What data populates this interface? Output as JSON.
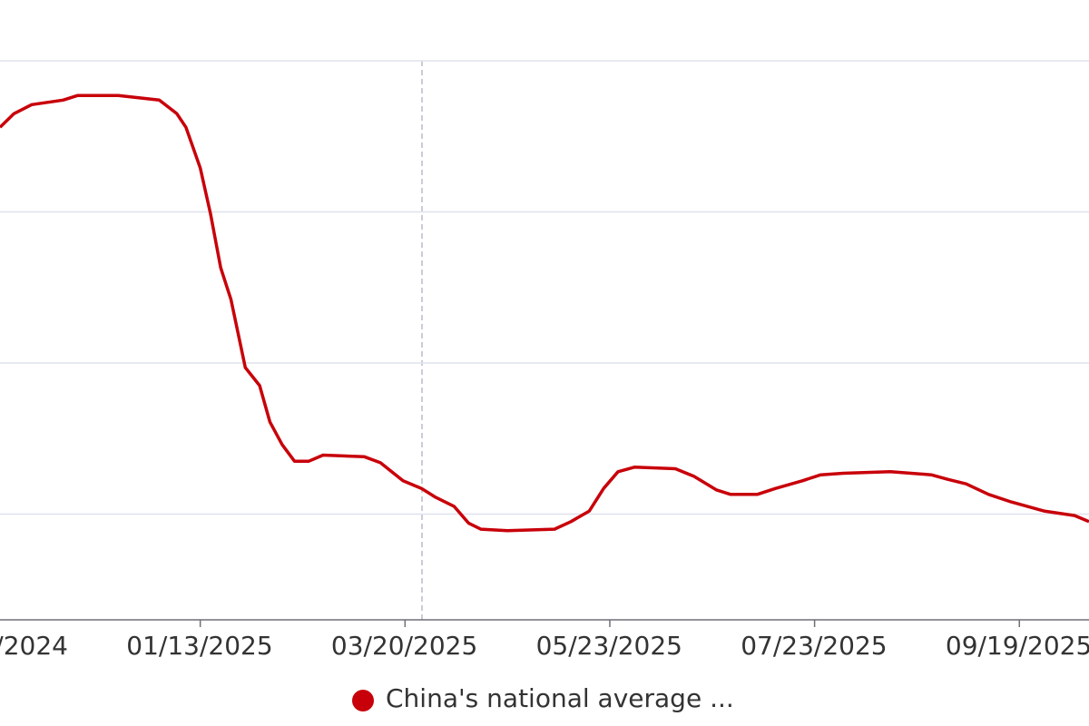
{
  "chart_data": {
    "type": "line",
    "x": [
      0.022,
      0.09,
      0.177,
      0.33,
      0.4,
      0.6,
      0.8,
      0.886,
      0.93,
      1.0,
      1.05,
      1.1,
      1.15,
      1.22,
      1.29,
      1.34,
      1.4,
      1.46,
      1.53,
      1.6,
      1.8,
      1.88,
      1.99,
      2.08,
      2.15,
      2.24,
      2.31,
      2.37,
      2.5,
      2.73,
      2.81,
      2.9,
      2.97,
      3.04,
      3.12,
      3.32,
      3.41,
      3.52,
      3.59,
      3.72,
      3.81,
      3.94,
      4.03,
      4.14,
      4.37,
      4.57,
      4.65,
      4.74,
      4.85,
      4.96,
      5.12,
      5.27,
      5.34
    ],
    "series": [
      {
        "name": "China's national average ...",
        "color": "#c8000a",
        "values": [
          3.56,
          3.65,
          3.71,
          3.74,
          3.77,
          3.77,
          3.74,
          3.65,
          3.56,
          3.29,
          2.99,
          2.63,
          2.42,
          1.97,
          1.85,
          1.61,
          1.46,
          1.35,
          1.35,
          1.39,
          1.38,
          1.34,
          1.22,
          1.17,
          1.11,
          1.05,
          0.94,
          0.9,
          0.89,
          0.9,
          0.95,
          1.02,
          1.17,
          1.28,
          1.31,
          1.3,
          1.25,
          1.16,
          1.13,
          1.13,
          1.17,
          1.22,
          1.26,
          1.27,
          1.28,
          1.26,
          1.23,
          1.2,
          1.13,
          1.08,
          1.02,
          0.99,
          0.95
        ]
      }
    ],
    "xlim": [
      0,
      5.34
    ],
    "xticks": [
      {
        "value": 0,
        "label": "/2024"
      },
      {
        "value": 1,
        "label": "01/13/2025"
      },
      {
        "value": 2,
        "label": "03/20/2025"
      },
      {
        "value": 3,
        "label": "05/23/2025"
      },
      {
        "value": 4,
        "label": "07/23/2025"
      },
      {
        "value": 5,
        "label": "09/19/2025"
      }
    ],
    "ylim": [
      0.3,
      4
    ],
    "yticks": [
      1,
      2,
      3,
      4
    ],
    "grid": true
  }
}
